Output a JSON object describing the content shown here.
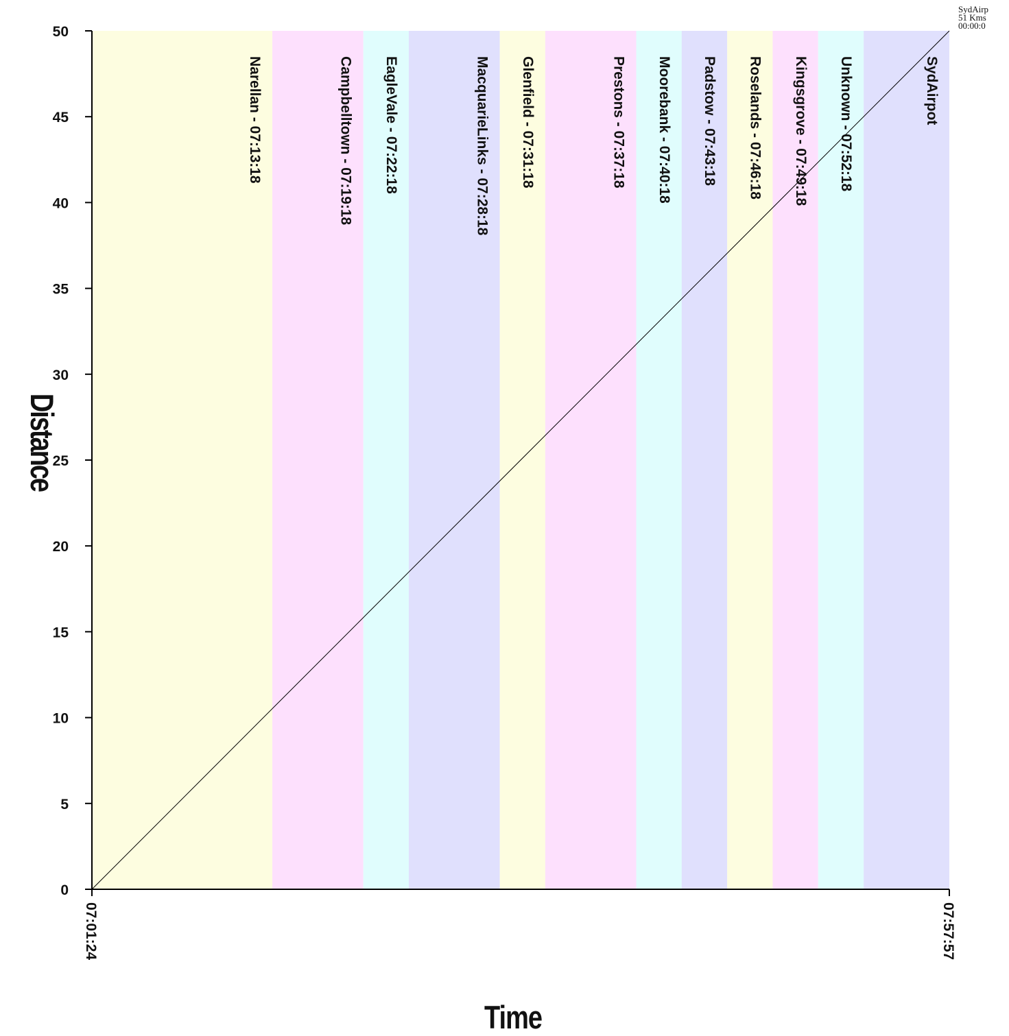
{
  "chart_data": {
    "type": "line",
    "xlabel": "Time",
    "ylabel": "Distance",
    "x_start": "07:01:24",
    "x_end": "07:57:57",
    "xticks": [
      "07:01:24",
      "07:57:57"
    ],
    "ylim": [
      0,
      50
    ],
    "yticks": [
      0,
      5,
      10,
      15,
      20,
      25,
      30,
      35,
      40,
      45,
      50
    ],
    "line": {
      "x": [
        "07:01:24",
        "07:57:57"
      ],
      "y": [
        0,
        50
      ]
    },
    "bands": [
      {
        "label": "Narellan - 07:13:18",
        "start": "07:01:24",
        "end": "07:13:18",
        "color": "#fdfde0"
      },
      {
        "label": "Campbelltown - 07:19:18",
        "start": "07:13:18",
        "end": "07:19:18",
        "color": "#fde0fd"
      },
      {
        "label": "EagleVale - 07:22:18",
        "start": "07:19:18",
        "end": "07:22:18",
        "color": "#e0fdfd"
      },
      {
        "label": "MacquarieLinks - 07:28:18",
        "start": "07:22:18",
        "end": "07:28:18",
        "color": "#e0e0fd"
      },
      {
        "label": "Glenfield - 07:31:18",
        "start": "07:28:18",
        "end": "07:31:18",
        "color": "#fdfde0"
      },
      {
        "label": "Prestons - 07:37:18",
        "start": "07:31:18",
        "end": "07:37:18",
        "color": "#fde0fd"
      },
      {
        "label": "Moorebank - 07:40:18",
        "start": "07:37:18",
        "end": "07:40:18",
        "color": "#e0fdfd"
      },
      {
        "label": "Padstow - 07:43:18",
        "start": "07:40:18",
        "end": "07:43:18",
        "color": "#e0e0fd"
      },
      {
        "label": "Roselands - 07:46:18",
        "start": "07:43:18",
        "end": "07:46:18",
        "color": "#fdfde0"
      },
      {
        "label": "Kingsgrove - 07:49:18",
        "start": "07:46:18",
        "end": "07:49:18",
        "color": "#fde0fd"
      },
      {
        "label": "Unknown - 07:52:18",
        "start": "07:49:18",
        "end": "07:52:18",
        "color": "#e0fdfd"
      },
      {
        "label": "SydAirpot",
        "start": "07:52:18",
        "end": "07:57:57",
        "color": "#e0e0fd"
      }
    ],
    "grid": false
  },
  "corner_info": [
    "SydAirp",
    "51 Kms",
    "00:00:0"
  ],
  "colors": {
    "line": "#000000",
    "axis": "#000000"
  }
}
